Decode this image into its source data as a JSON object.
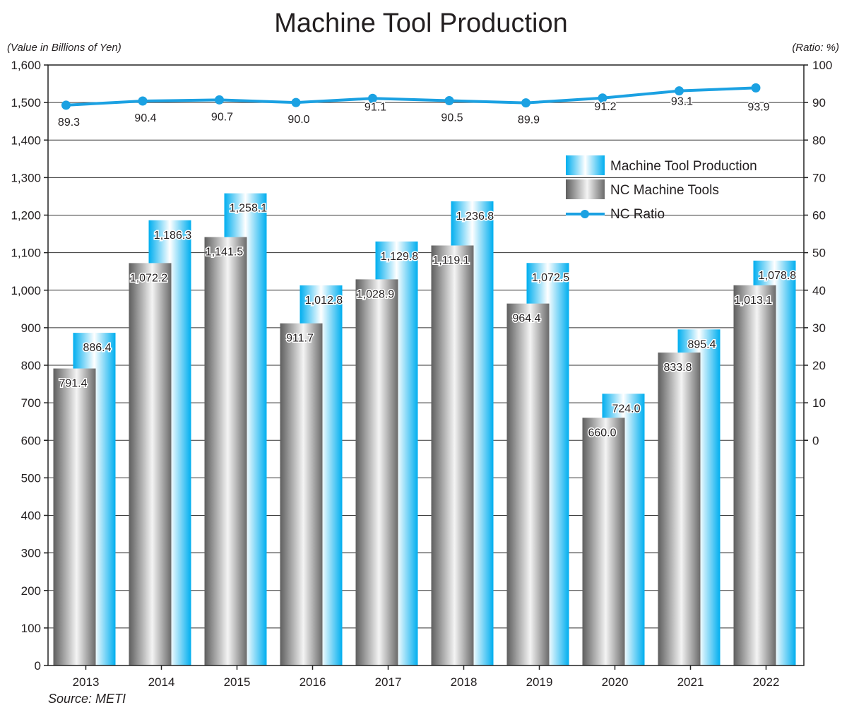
{
  "chart_data": {
    "type": "bar",
    "title": "Machine Tool Production",
    "left_unit_label": "(Value in Billions of Yen)",
    "right_unit_label": "(Ratio: %)",
    "source": "Source: METI",
    "categories": [
      "2013",
      "2014",
      "2015",
      "2016",
      "2017",
      "2018",
      "2019",
      "2020",
      "2021",
      "2022"
    ],
    "y_left": {
      "min": 0,
      "max": 1600,
      "step": 100,
      "tick_labels": [
        "0",
        "100",
        "200",
        "300",
        "400",
        "500",
        "600",
        "700",
        "800",
        "900",
        "1,000",
        "1,100",
        "1,200",
        "1,300",
        "1,400",
        "1,500",
        "1,600"
      ]
    },
    "y_right": {
      "min": 0,
      "max": 100,
      "step": 10,
      "tick_labels": [
        "0",
        "10",
        "20",
        "30",
        "40",
        "50",
        "60",
        "70",
        "80",
        "90",
        "100"
      ]
    },
    "series": [
      {
        "name": "NC Machine Tools",
        "type": "bar",
        "axis": "left",
        "color": "#8a8a8a",
        "values": [
          791.4,
          1072.2,
          1141.5,
          911.7,
          1028.9,
          1119.1,
          964.4,
          660.0,
          833.8,
          1013.1
        ],
        "labels": [
          "791.4",
          "1,072.2",
          "1,141.5",
          "911.7",
          "1,028.9",
          "1,119.1",
          "964.4",
          "660.0",
          "833.8",
          "1,013.1"
        ]
      },
      {
        "name": "Machine Tool Production",
        "type": "bar",
        "axis": "left",
        "color": "#00aeef",
        "values": [
          886.4,
          1186.3,
          1258.1,
          1012.8,
          1129.8,
          1236.8,
          1072.5,
          724.0,
          895.4,
          1078.8
        ],
        "labels": [
          "886.4",
          "1,186.3",
          "1,258.1",
          "1,012.8",
          "1,129.8",
          "1,236.8",
          "1,072.5",
          "724.0",
          "895.4",
          "1,078.8"
        ]
      },
      {
        "name": "NC Ratio",
        "type": "line",
        "axis": "right",
        "color": "#1ba1e2",
        "values": [
          89.3,
          90.4,
          90.7,
          90.0,
          91.1,
          90.5,
          89.9,
          91.2,
          93.1,
          93.9
        ],
        "labels": [
          "89.3",
          "90.4",
          "90.7",
          "90.0",
          "91.1",
          "90.5",
          "89.9",
          "91.2",
          "93.1",
          "93.9"
        ]
      }
    ],
    "legend": {
      "position": "top-right",
      "items": [
        "Machine Tool Production",
        "NC Machine Tools",
        "NC Ratio"
      ]
    },
    "grid": true
  }
}
